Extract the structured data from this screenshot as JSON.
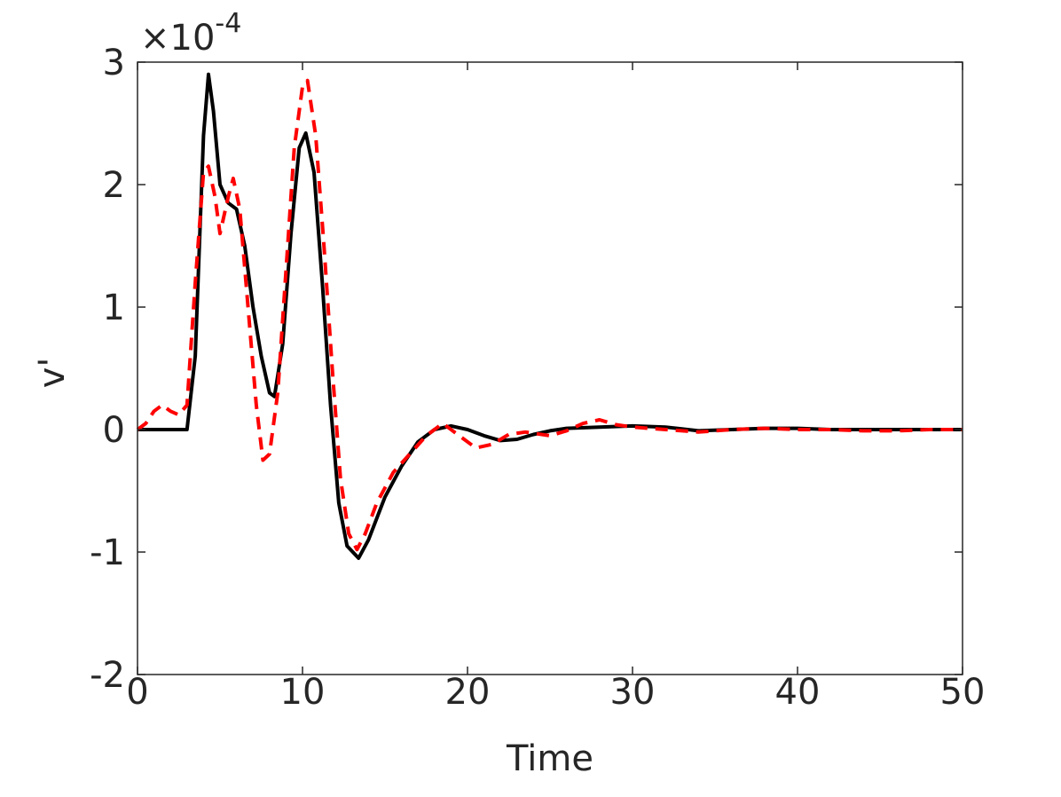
{
  "chart_data": {
    "type": "line",
    "x_label": "Time",
    "y_label": "v'",
    "y_multiplier": {
      "base": "×10",
      "exponent": "-4"
    },
    "xlim": [
      0,
      50
    ],
    "ylim": [
      -2,
      3
    ],
    "xticks": [
      0,
      10,
      20,
      30,
      40,
      50
    ],
    "yticks": [
      -2,
      -1,
      0,
      1,
      2,
      3
    ],
    "box": true,
    "series": [
      {
        "color": "#000000",
        "dashed": false,
        "x": [
          0,
          1,
          2,
          3,
          3.5,
          4,
          4.3,
          4.6,
          5,
          5.5,
          6,
          6.5,
          7,
          7.5,
          8,
          8.3,
          8.8,
          9.3,
          9.8,
          10.2,
          10.7,
          11.2,
          11.7,
          12.2,
          12.7,
          13.4,
          14,
          15,
          16,
          17,
          18,
          19,
          20,
          21,
          22,
          23,
          24,
          25,
          26,
          28,
          30,
          32,
          34,
          36,
          38,
          40,
          42,
          44,
          46,
          48,
          50
        ],
        "values": [
          0,
          0,
          0,
          0,
          0.6,
          2.4,
          2.9,
          2.6,
          2.0,
          1.85,
          1.8,
          1.5,
          1.0,
          0.6,
          0.3,
          0.27,
          0.7,
          1.6,
          2.3,
          2.42,
          2.1,
          1.2,
          0.2,
          -0.6,
          -0.95,
          -1.05,
          -0.9,
          -0.55,
          -0.3,
          -0.1,
          0,
          0.03,
          0,
          -0.05,
          -0.09,
          -0.08,
          -0.04,
          -0.01,
          0.01,
          0.02,
          0.03,
          0.02,
          -0.01,
          0,
          0.01,
          0.01,
          0,
          0,
          0,
          0,
          0
        ]
      },
      {
        "color": "#ff0000",
        "dashed": true,
        "x": [
          0,
          0.5,
          1,
          1.5,
          2,
          2.5,
          3,
          3.5,
          4,
          4.3,
          4.7,
          5,
          5.5,
          5.8,
          6.2,
          6.7,
          7.2,
          7.6,
          8,
          8.5,
          9,
          9.5,
          10,
          10.3,
          10.8,
          11.3,
          11.8,
          12.3,
          12.8,
          13.3,
          13.8,
          14.5,
          15.5,
          16.5,
          17.5,
          18.5,
          19.5,
          20.5,
          21.5,
          22.5,
          23.5,
          25,
          26,
          27,
          28,
          29,
          30,
          32,
          34,
          36,
          38,
          40,
          42,
          44,
          46,
          48,
          50
        ],
        "values": [
          0,
          0.05,
          0.15,
          0.2,
          0.15,
          0.12,
          0.2,
          1.2,
          2.1,
          2.15,
          1.9,
          1.6,
          1.9,
          2.05,
          1.8,
          1.0,
          0.2,
          -0.25,
          -0.2,
          0.3,
          1.3,
          2.3,
          2.8,
          2.85,
          2.4,
          1.5,
          0.5,
          -0.4,
          -0.85,
          -0.98,
          -0.85,
          -0.6,
          -0.35,
          -0.2,
          -0.05,
          0.05,
          -0.05,
          -0.15,
          -0.12,
          -0.04,
          -0.02,
          -0.05,
          -0.01,
          0.05,
          0.08,
          0.04,
          0.02,
          0,
          -0.02,
          0,
          0.01,
          0,
          0,
          -0.01,
          -0.01,
          0,
          0
        ]
      }
    ]
  }
}
